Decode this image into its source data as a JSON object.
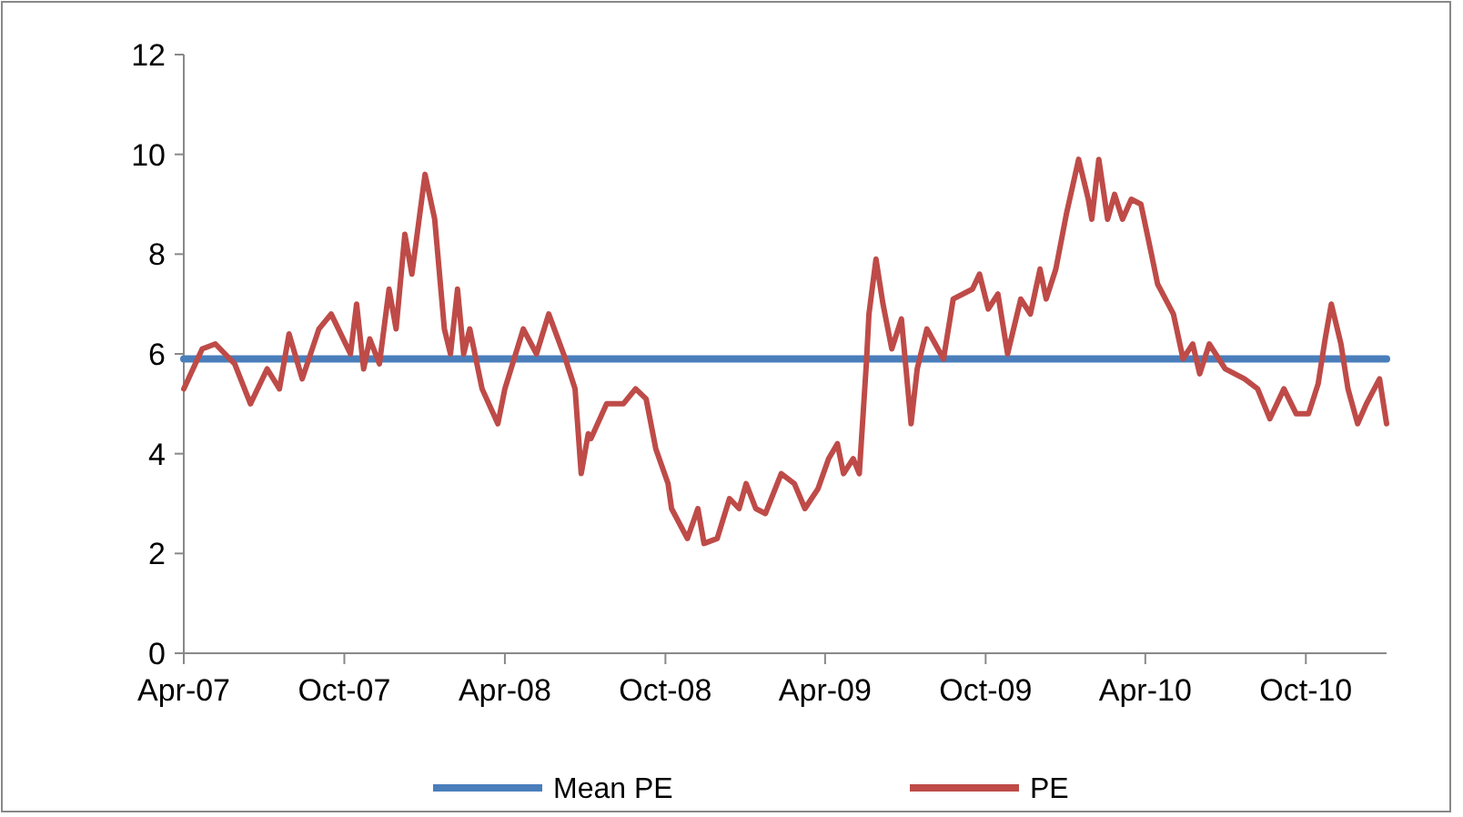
{
  "chart_data": {
    "type": "line",
    "legend": "bottom",
    "grid": false,
    "xlim": [
      "2007-04-01",
      "2011-01-01"
    ],
    "xticks": [
      {
        "value": "2007-04-01",
        "label": "Apr-07"
      },
      {
        "value": "2007-10-01",
        "label": "Oct-07"
      },
      {
        "value": "2008-04-01",
        "label": "Apr-08"
      },
      {
        "value": "2008-10-01",
        "label": "Oct-08"
      },
      {
        "value": "2009-04-01",
        "label": "Apr-09"
      },
      {
        "value": "2009-10-01",
        "label": "Oct-09"
      },
      {
        "value": "2010-04-01",
        "label": "Apr-10"
      },
      {
        "value": "2010-10-01",
        "label": "Oct-10"
      }
    ],
    "ylim": [
      0,
      12
    ],
    "yticks": [
      0,
      2,
      4,
      6,
      8,
      10,
      12
    ],
    "series": [
      {
        "name": "Mean PE",
        "color": "#4a7ebb",
        "x": [
          "2007-04-01",
          "2011-01-01"
        ],
        "values": [
          5.9,
          5.9
        ]
      },
      {
        "name": "PE",
        "color": "#be4b48",
        "x": [
          "2007-04-01",
          "2007-04-22",
          "2007-05-07",
          "2007-05-29",
          "2007-06-16",
          "2007-07-05",
          "2007-07-19",
          "2007-07-30",
          "2007-08-14",
          "2007-09-02",
          "2007-09-16",
          "2007-10-08",
          "2007-10-15",
          "2007-10-23",
          "2007-10-30",
          "2007-11-10",
          "2007-11-21",
          "2007-11-29",
          "2007-12-09",
          "2007-12-17",
          "2008-01-01",
          "2008-01-12",
          "2008-01-23",
          "2008-01-30",
          "2008-02-07",
          "2008-02-14",
          "2008-02-21",
          "2008-03-06",
          "2008-03-24",
          "2008-04-01",
          "2008-04-22",
          "2008-05-07",
          "2008-05-21",
          "2008-06-09",
          "2008-06-20",
          "2008-06-27",
          "2008-07-05",
          "2008-07-08",
          "2008-07-26",
          "2008-08-14",
          "2008-08-28",
          "2008-09-09",
          "2008-09-20",
          "2008-10-04",
          "2008-10-08",
          "2008-10-26",
          "2008-11-07",
          "2008-11-14",
          "2008-11-29",
          "2008-12-13",
          "2008-12-24",
          "2009-01-01",
          "2009-01-12",
          "2009-01-23",
          "2009-02-10",
          "2009-02-25",
          "2009-03-09",
          "2009-03-24",
          "2009-04-05",
          "2009-04-15",
          "2009-04-22",
          "2009-05-03",
          "2009-05-10",
          "2009-05-18",
          "2009-05-21",
          "2009-05-29",
          "2009-06-06",
          "2009-06-16",
          "2009-06-27",
          "2009-07-08",
          "2009-07-15",
          "2009-07-26",
          "2009-08-14",
          "2009-08-25",
          "2009-09-16",
          "2009-09-24",
          "2009-10-04",
          "2009-10-15",
          "2009-10-26",
          "2009-11-10",
          "2009-11-21",
          "2009-12-02",
          "2009-12-09",
          "2009-12-20",
          "2010-01-01",
          "2010-01-15",
          "2010-01-26",
          "2010-01-30",
          "2010-02-07",
          "2010-02-17",
          "2010-02-25",
          "2010-03-06",
          "2010-03-16",
          "2010-03-27",
          "2010-04-08",
          "2010-04-15",
          "2010-05-03",
          "2010-05-14",
          "2010-05-25",
          "2010-06-02",
          "2010-06-13",
          "2010-07-01",
          "2010-07-23",
          "2010-08-07",
          "2010-08-21",
          "2010-09-06",
          "2010-09-20",
          "2010-10-04",
          "2010-10-15",
          "2010-10-23",
          "2010-10-30",
          "2010-11-10",
          "2010-11-18",
          "2010-11-29",
          "2010-12-09",
          "2010-12-24",
          "2011-01-01"
        ],
        "values": [
          5.3,
          6.1,
          6.2,
          5.8,
          5.0,
          5.7,
          5.3,
          6.4,
          5.5,
          6.5,
          6.8,
          6.0,
          7.0,
          5.7,
          6.3,
          5.8,
          7.3,
          6.5,
          8.4,
          7.6,
          9.6,
          8.7,
          6.5,
          6.0,
          7.3,
          6.0,
          6.5,
          5.3,
          4.6,
          5.3,
          6.5,
          6.0,
          6.8,
          5.9,
          5.3,
          3.6,
          4.4,
          4.3,
          5.0,
          5.0,
          5.3,
          5.1,
          4.1,
          3.4,
          2.9,
          2.3,
          2.9,
          2.2,
          2.3,
          3.1,
          2.9,
          3.4,
          2.9,
          2.8,
          3.6,
          3.4,
          2.9,
          3.3,
          3.9,
          4.2,
          3.6,
          3.9,
          3.6,
          5.8,
          6.8,
          7.9,
          7.0,
          6.1,
          6.7,
          4.6,
          5.7,
          6.5,
          5.9,
          7.1,
          7.3,
          7.6,
          6.9,
          7.2,
          6.0,
          7.1,
          6.8,
          7.7,
          7.1,
          7.7,
          8.8,
          9.9,
          9.1,
          8.7,
          9.9,
          8.7,
          9.2,
          8.7,
          9.1,
          9.0,
          8.0,
          7.4,
          6.8,
          5.9,
          6.2,
          5.6,
          6.2,
          5.7,
          5.5,
          5.3,
          4.7,
          5.3,
          4.8,
          4.8,
          5.4,
          6.3,
          7.0,
          6.2,
          5.3,
          4.6,
          5.0,
          5.5,
          4.6
        ]
      }
    ]
  }
}
